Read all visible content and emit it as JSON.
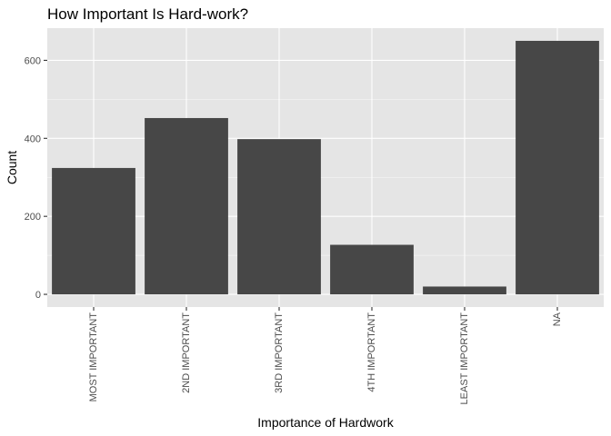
{
  "chart_data": {
    "type": "bar",
    "title": "How Important Is Hard-work?",
    "xlabel": "Importance of Hardwork",
    "ylabel": "Count",
    "categories": [
      "MOST IMPORTANT",
      "2ND IMPORTANT",
      "3RD IMPORTANT",
      "4TH IMPORTANT",
      "LEAST IMPORTANT",
      "NA"
    ],
    "values": [
      324,
      452,
      398,
      127,
      20,
      650
    ],
    "ylim": [
      -32.5,
      682.5
    ],
    "yticks": [
      0,
      200,
      400,
      600
    ],
    "grid": true,
    "colors": {
      "panel_background": "#e5e5e5",
      "grid_major": "#ffffff",
      "bar_fill": "#474747",
      "tick_mark": "#333333",
      "tick_text": "#4d4d4d"
    }
  }
}
